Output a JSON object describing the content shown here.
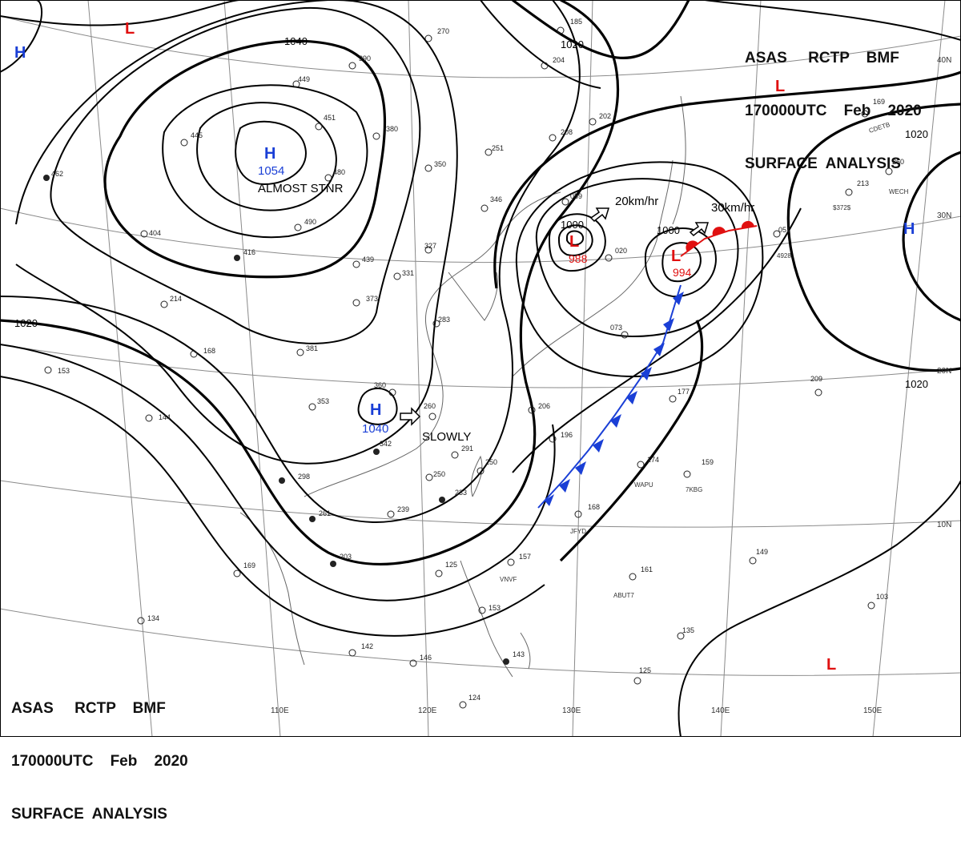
{
  "header_top": {
    "line1": "ASAS     RCTP    BMF",
    "line2": "170000UTC    Feb    2020",
    "line3": "SURFACE  ANALYSIS"
  },
  "header_bottom": {
    "line1": "ASAS     RCTP    BMF",
    "line2": "170000UTC    Feb    2020",
    "line3": "SURFACE  ANALYSIS"
  },
  "colors": {
    "high": "#1a3fd6",
    "low": "#e01010",
    "cold_front": "#1a3fd6",
    "warm_front": "#e01010",
    "isobar": "#000000",
    "grid": "#777777"
  },
  "longitude_labels": [
    "110E",
    "120E",
    "130E",
    "140E",
    "150E"
  ],
  "latitude_labels": [
    "40N",
    "30N",
    "20N",
    "10N"
  ],
  "isobar_labels": [
    "1040",
    "1020",
    "1000",
    "1020",
    "1020",
    "1000",
    "1020"
  ],
  "pressure_centers": [
    {
      "type": "H",
      "value": "1054",
      "note": "ALMOST STNR"
    },
    {
      "type": "H",
      "value": "1040",
      "note": "SLOWLY"
    },
    {
      "type": "L",
      "value": "988",
      "motion": "20km/hr"
    },
    {
      "type": "L",
      "value": "994",
      "motion": "30km/hr"
    },
    {
      "type": "H",
      "value": ""
    },
    {
      "type": "H",
      "value": ""
    },
    {
      "type": "L",
      "value": ""
    },
    {
      "type": "L",
      "value": ""
    },
    {
      "type": "L",
      "value": ""
    }
  ],
  "stations": [
    {
      "label": "1054"
    },
    {
      "label": "445"
    },
    {
      "label": "449"
    },
    {
      "label": "451"
    },
    {
      "label": "480"
    },
    {
      "label": "490"
    },
    {
      "label": "390"
    },
    {
      "label": "270"
    },
    {
      "label": "185"
    },
    {
      "label": "204"
    },
    {
      "label": "208"
    },
    {
      "label": "202"
    },
    {
      "label": "251"
    },
    {
      "label": "350"
    },
    {
      "label": "380"
    },
    {
      "label": "346"
    },
    {
      "label": "059"
    },
    {
      "label": "416"
    },
    {
      "label": "439"
    },
    {
      "label": "373"
    },
    {
      "label": "331"
    },
    {
      "label": "327"
    },
    {
      "label": "260"
    },
    {
      "label": "283"
    },
    {
      "label": "381"
    },
    {
      "label": "214"
    },
    {
      "label": "168"
    },
    {
      "label": "153"
    },
    {
      "label": "144"
    },
    {
      "label": "353"
    },
    {
      "label": "360"
    },
    {
      "label": "342"
    },
    {
      "label": "298"
    },
    {
      "label": "261"
    },
    {
      "label": "203"
    },
    {
      "label": "169"
    },
    {
      "label": "134"
    },
    {
      "label": "142"
    },
    {
      "label": "146"
    },
    {
      "label": "124"
    },
    {
      "label": "143"
    },
    {
      "label": "125"
    },
    {
      "label": "153"
    },
    {
      "label": "239"
    },
    {
      "label": "291"
    },
    {
      "label": "250"
    },
    {
      "label": "250"
    },
    {
      "label": "233"
    },
    {
      "label": "206"
    },
    {
      "label": "196"
    },
    {
      "label": "168"
    },
    {
      "label": "157"
    },
    {
      "label": "161"
    },
    {
      "label": "174"
    },
    {
      "label": "159"
    },
    {
      "label": "177"
    },
    {
      "label": "073"
    },
    {
      "label": "020"
    },
    {
      "label": "051"
    },
    {
      "label": "213"
    },
    {
      "label": "260"
    },
    {
      "label": "169"
    },
    {
      "label": "209"
    },
    {
      "label": "149"
    },
    {
      "label": "103"
    },
    {
      "label": "135"
    },
    {
      "label": "125"
    },
    {
      "label": "404"
    },
    {
      "label": "462"
    }
  ],
  "station_ids": [
    "CDETB",
    "WECH",
    "$372$",
    "WAPU",
    "7KBG",
    "JFYD",
    "VNVF",
    "ABUT7",
    "4928"
  ]
}
